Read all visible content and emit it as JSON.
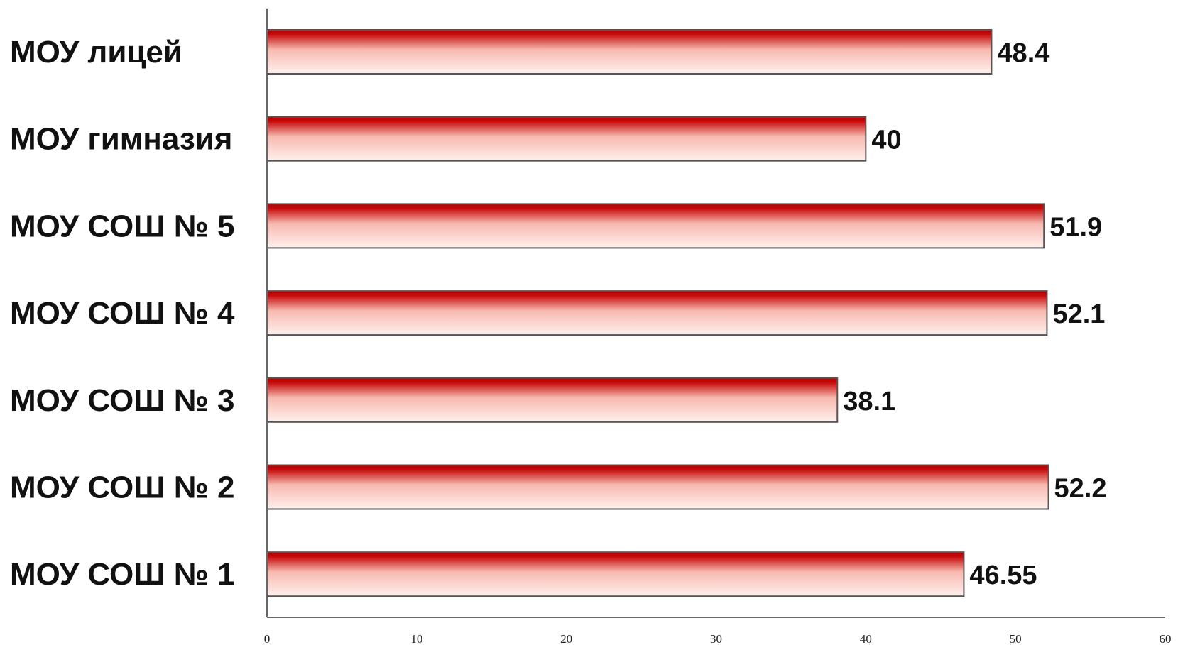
{
  "chart_data": {
    "type": "bar",
    "orientation": "horizontal",
    "categories": [
      "МОУ лицей",
      "МОУ гимназия",
      "МОУ СОШ № 5",
      "МОУ СОШ № 4",
      "МОУ СОШ № 3",
      "МОУ СОШ № 2",
      "МОУ СОШ № 1"
    ],
    "values": [
      48.4,
      40,
      51.9,
      52.1,
      38.1,
      52.2,
      46.55
    ],
    "value_labels": [
      "48.4",
      "40",
      "51.9",
      "52.1",
      "38.1",
      "52.2",
      "46.55"
    ],
    "xlim": [
      0,
      60
    ],
    "xticks": [
      "0",
      "10",
      "20",
      "30",
      "40",
      "50",
      "60"
    ],
    "title": "",
    "xlabel": "",
    "ylabel": "",
    "grid": false,
    "legend": "none",
    "colors": {
      "bar_top": "#b00000",
      "bar_mid": "#f7b9b0",
      "bar_bottom": "#fff0ec",
      "bar_border": "#555555",
      "axis": "#666666"
    }
  }
}
